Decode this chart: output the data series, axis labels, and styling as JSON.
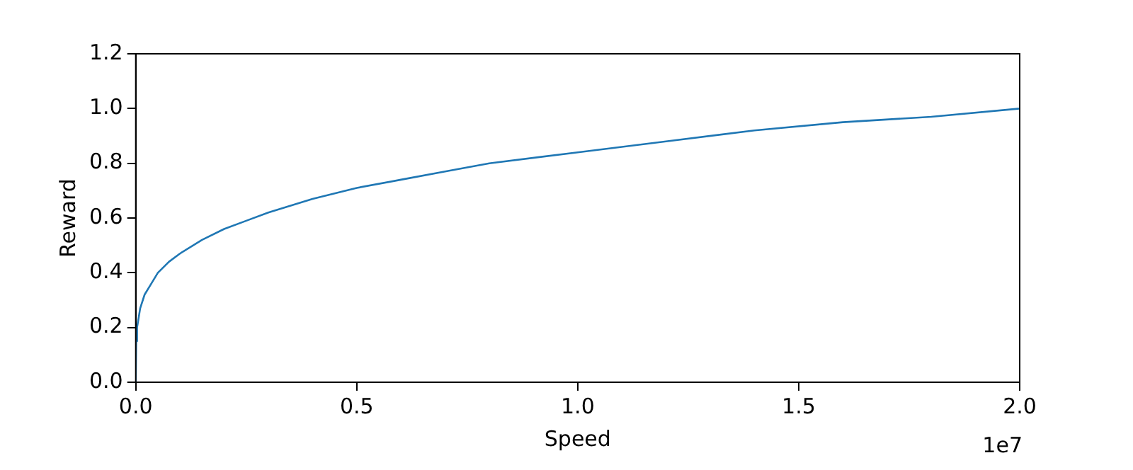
{
  "chart_data": {
    "type": "line",
    "xlabel": "Speed",
    "ylabel": "Reward",
    "x": [
      0,
      0.001,
      0.003,
      0.005,
      0.01,
      0.02,
      0.035,
      0.05,
      0.075,
      0.1,
      0.15,
      0.2,
      0.25,
      0.3,
      0.4,
      0.5,
      0.6,
      0.7,
      0.8,
      1.0,
      1.2,
      1.4,
      1.6,
      1.8,
      2.0
    ],
    "series": [
      {
        "color": "#1f77b4",
        "values": [
          0,
          0.15,
          0.2,
          0.22,
          0.27,
          0.32,
          0.36,
          0.4,
          0.44,
          0.47,
          0.52,
          0.56,
          0.59,
          0.62,
          0.67,
          0.71,
          0.74,
          0.77,
          0.8,
          0.84,
          0.88,
          0.92,
          0.95,
          0.97,
          1.0
        ]
      }
    ],
    "xlim": [
      0,
      2.0
    ],
    "xticks": [
      {
        "value": 0,
        "label": "0.0"
      },
      {
        "value": 0.5,
        "label": "0.5"
      },
      {
        "value": 1.0,
        "label": "1.0"
      },
      {
        "value": 1.5,
        "label": "1.5"
      },
      {
        "value": 2.0,
        "label": "2.0"
      }
    ],
    "ylim": [
      0,
      1.2
    ],
    "yticks": [
      {
        "value": 0,
        "label": "0.0"
      },
      {
        "value": 0.2,
        "label": "0.2"
      },
      {
        "value": 0.4,
        "label": "0.4"
      },
      {
        "value": 0.6,
        "label": "0.6"
      },
      {
        "value": 0.8,
        "label": "0.8"
      },
      {
        "value": 1.0,
        "label": "1.0"
      },
      {
        "value": 1.2,
        "label": "1.2"
      }
    ],
    "annotations": [
      "1e7"
    ],
    "grid": false,
    "legend": false,
    "marker": "none",
    "line_style": "solid"
  }
}
